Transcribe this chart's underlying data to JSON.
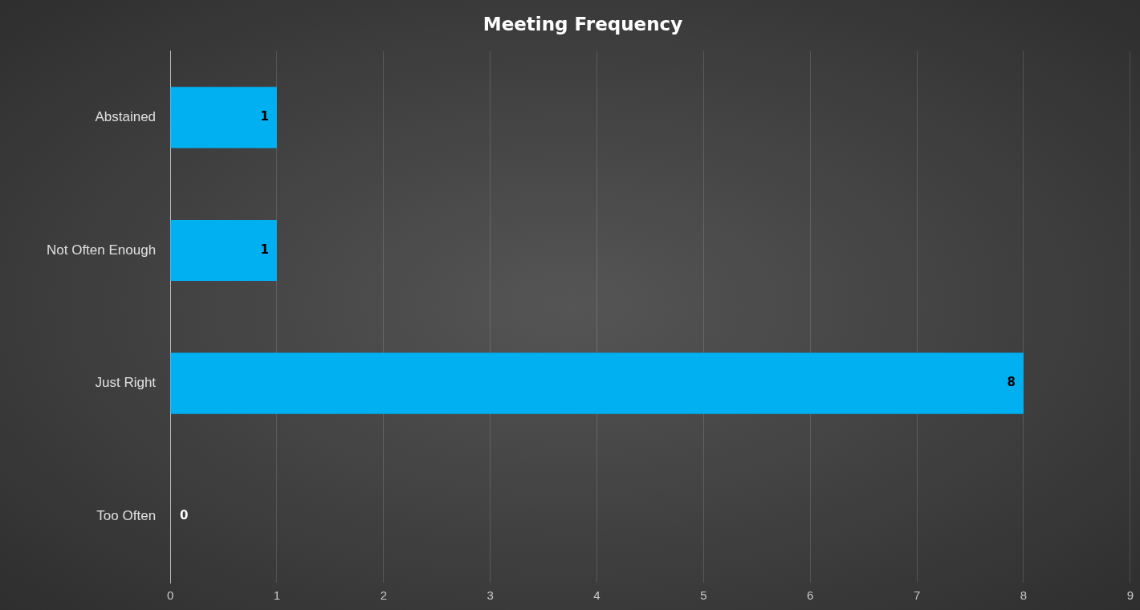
{
  "chart_data": {
    "type": "bar",
    "orientation": "horizontal",
    "title": "Meeting Frequency",
    "categories": [
      "Abstained",
      "Not Often Enough",
      "Just Right",
      "Too Often"
    ],
    "values": [
      1,
      1,
      8,
      0
    ],
    "color": "#00b0f0",
    "xlim": [
      0,
      9
    ],
    "xticks": [
      0,
      1,
      2,
      3,
      4,
      5,
      6,
      7,
      8,
      9
    ],
    "grid": "x",
    "data_labels": true
  }
}
